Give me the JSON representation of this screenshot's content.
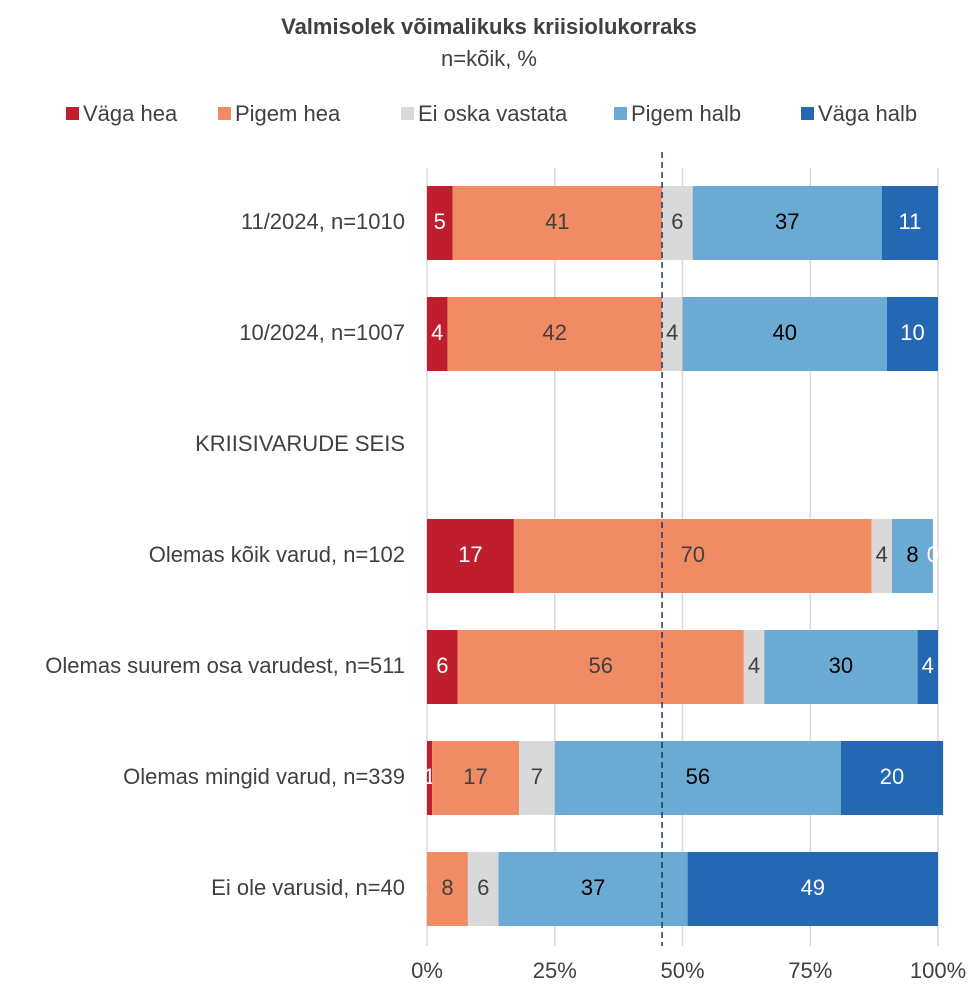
{
  "chart_data": {
    "type": "stacked_barh",
    "title": "Valmisolek võimalikuks kriisiolukorraks",
    "subtitle": "n=kõik,  %",
    "categories": [
      "11/2024, n=1010",
      "10/2024, n=1007",
      "KRIISIVARUDE SEIS",
      "Olemas kõik varud, n=102",
      "Olemas suurem osa varudest, n=511",
      "Olemas mingid varud, n=339",
      "Ei ole varusid, n=40"
    ],
    "series": [
      {
        "name": "Väga hea",
        "color": "#be1e2d",
        "label_color": "#ffffff",
        "values": [
          5,
          4,
          null,
          17,
          6,
          1,
          0
        ]
      },
      {
        "name": "Pigem hea",
        "color": "#f08b63",
        "label_color": "#404040",
        "values": [
          41,
          42,
          null,
          70,
          56,
          17,
          8
        ]
      },
      {
        "name": "Ei oska vastata",
        "color": "#d9d9d9",
        "label_color": "#404040",
        "values": [
          6,
          4,
          null,
          4,
          4,
          7,
          6
        ]
      },
      {
        "name": "Pigem halb",
        "color": "#6aaad3",
        "label_color": "#000000",
        "values": [
          37,
          40,
          null,
          8,
          30,
          56,
          37
        ]
      },
      {
        "name": "Väga halb",
        "color": "#2467b2",
        "label_color": "#ffffff",
        "values": [
          11,
          10,
          null,
          0,
          4,
          20,
          49
        ]
      }
    ],
    "xlim": [
      0,
      100
    ],
    "xticks": [
      {
        "value": 0,
        "label": "0%"
      },
      {
        "value": 25,
        "label": "25%"
      },
      {
        "value": 50,
        "label": "50%"
      },
      {
        "value": 75,
        "label": "75%"
      },
      {
        "value": 100,
        "label": "100%"
      }
    ],
    "reference_line": 46,
    "grid": true,
    "legend": "top"
  }
}
